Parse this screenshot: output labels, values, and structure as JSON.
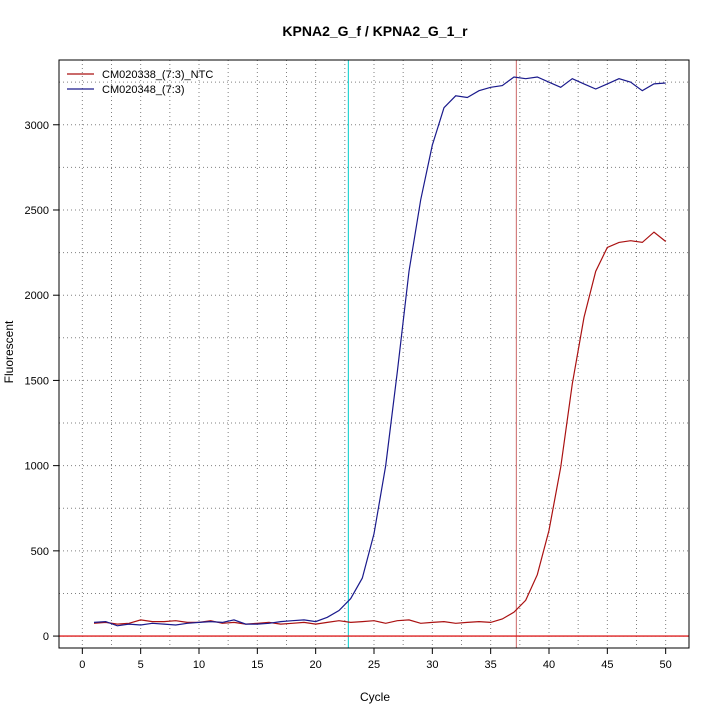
{
  "chart_data": {
    "type": "line",
    "title": "KPNA2_G_f / KPNA2_G_1_r",
    "xlabel": "Cycle",
    "ylabel": "Fluorescent",
    "xlim": [
      -2,
      52
    ],
    "ylim": [
      -70,
      3380
    ],
    "xticks": [
      0,
      5,
      10,
      15,
      20,
      25,
      30,
      35,
      40,
      45,
      50
    ],
    "yticks": [
      0,
      500,
      1000,
      1500,
      2000,
      2500,
      3000
    ],
    "grid": true,
    "legend_position": "top-left",
    "vertical_lines": [
      {
        "x": 22.8,
        "color": "#00cccc"
      },
      {
        "x": 37.2,
        "color": "#cc6666"
      }
    ],
    "horizontal_lines": [
      {
        "y": 0,
        "color": "#dd2222"
      }
    ],
    "x": [
      1,
      2,
      3,
      4,
      5,
      6,
      7,
      8,
      9,
      10,
      11,
      12,
      13,
      14,
      15,
      16,
      17,
      18,
      19,
      20,
      21,
      22,
      23,
      24,
      25,
      26,
      27,
      28,
      29,
      30,
      31,
      32,
      33,
      34,
      35,
      36,
      37,
      38,
      39,
      40,
      41,
      42,
      43,
      44,
      45,
      46,
      47,
      48,
      49,
      50
    ],
    "series": [
      {
        "name": "CM020338_(7:3)_NTC",
        "color": "#aa1111",
        "values": [
          75,
          80,
          70,
          75,
          95,
          85,
          85,
          90,
          80,
          80,
          90,
          75,
          80,
          70,
          75,
          80,
          70,
          75,
          80,
          70,
          80,
          90,
          80,
          85,
          90,
          75,
          90,
          95,
          75,
          80,
          85,
          75,
          80,
          85,
          80,
          100,
          140,
          210,
          360,
          620,
          990,
          1480,
          1870,
          2140,
          2280,
          2310,
          2320,
          2310,
          2370,
          2315
        ]
      },
      {
        "name": "CM020348_(7:3)",
        "color": "#1a1a8c",
        "values": [
          80,
          85,
          60,
          70,
          65,
          75,
          70,
          65,
          75,
          80,
          85,
          80,
          95,
          70,
          70,
          75,
          85,
          90,
          95,
          85,
          110,
          150,
          220,
          340,
          600,
          1000,
          1550,
          2140,
          2560,
          2880,
          3100,
          3170,
          3160,
          3200,
          3220,
          3230,
          3280,
          3270,
          3280,
          3250,
          3220,
          3270,
          3240,
          3210,
          3240,
          3270,
          3250,
          3200,
          3240,
          3245
        ]
      }
    ]
  }
}
